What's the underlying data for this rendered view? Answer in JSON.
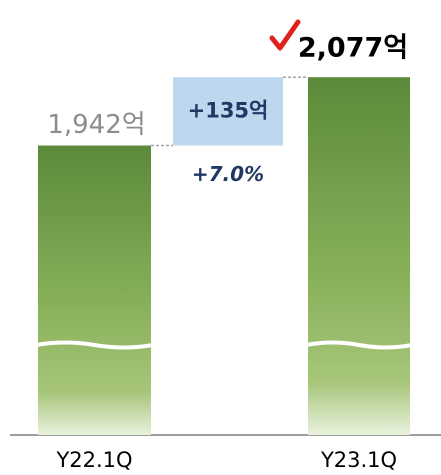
{
  "chart_data": {
    "type": "bar",
    "categories": [
      "Y22.1Q",
      "Y23.1Q"
    ],
    "values": [
      1942,
      2077
    ],
    "value_labels": [
      "1,942억",
      "2,077억"
    ],
    "color": "#5b8a3a",
    "ylim": [
      1370,
      2190
    ],
    "axis_break": true,
    "annotations": {
      "change": "+135억",
      "change_pct": "+7.0%"
    }
  }
}
